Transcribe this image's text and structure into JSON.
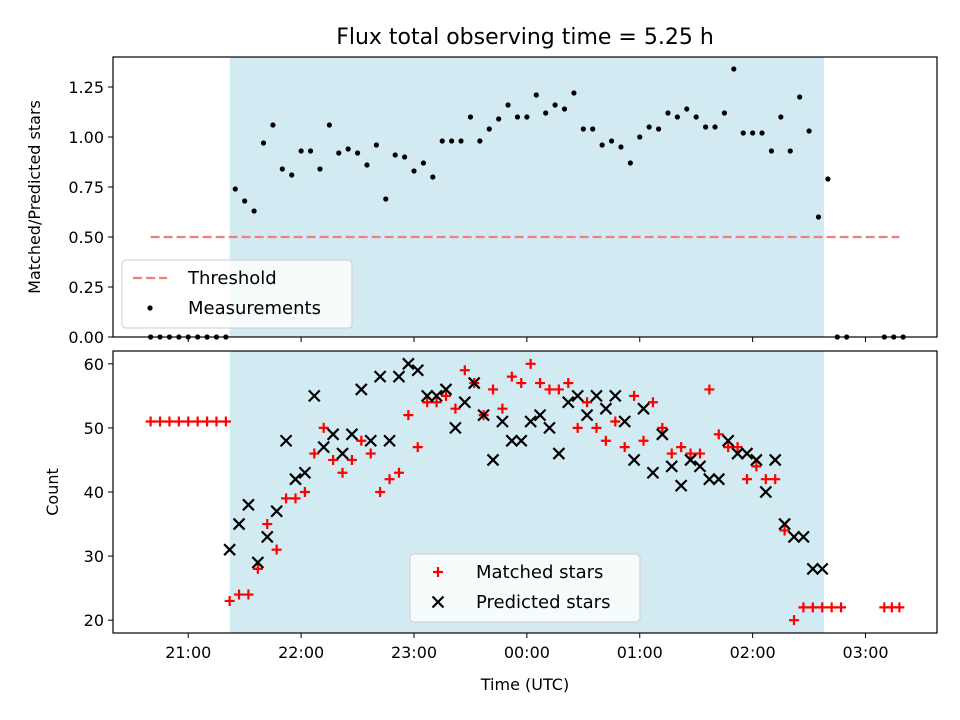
{
  "chart_data": [
    {
      "type": "scatter",
      "title": "Flux total observing time = 5.25 h",
      "xlabel": "",
      "ylabel": "Matched/Predicted stars",
      "ylim": [
        0,
        1.4
      ],
      "xlim": [
        "20:20",
        "03:38"
      ],
      "yticks": [
        "0.00",
        "0.25",
        "0.50",
        "0.75",
        "1.00",
        "1.25"
      ],
      "ytick_values": [
        0,
        0.25,
        0.5,
        0.75,
        1.0,
        1.25
      ],
      "legend": {
        "placement": "lower-left",
        "entries": [
          "Threshold",
          "Measurements"
        ]
      },
      "shaded_span": {
        "start": "21:22",
        "end": "02:38",
        "color": "#add8e6"
      },
      "threshold": {
        "name": "Threshold",
        "value": 0.5,
        "x_start": "20:40",
        "x_end": "03:18",
        "color": "#f08080",
        "style": "dashed"
      },
      "series": [
        {
          "name": "Measurements",
          "color": "#000000",
          "x": [
            "20:40",
            "20:45",
            "20:50",
            "20:55",
            "21:00",
            "21:05",
            "21:10",
            "21:15",
            "21:20",
            "21:25",
            "21:30",
            "21:35",
            "21:40",
            "21:45",
            "21:50",
            "21:55",
            "22:00",
            "22:05",
            "22:10",
            "22:15",
            "22:20",
            "22:25",
            "22:30",
            "22:35",
            "22:40",
            "22:45",
            "22:50",
            "22:55",
            "23:00",
            "23:05",
            "23:10",
            "23:15",
            "23:20",
            "23:25",
            "23:30",
            "23:35",
            "23:40",
            "23:45",
            "23:50",
            "23:55",
            "00:00",
            "00:05",
            "00:10",
            "00:15",
            "00:20",
            "00:25",
            "00:30",
            "00:35",
            "00:40",
            "00:45",
            "00:50",
            "00:55",
            "01:00",
            "01:05",
            "01:10",
            "01:15",
            "01:20",
            "01:25",
            "01:30",
            "01:35",
            "01:40",
            "01:45",
            "01:50",
            "01:55",
            "02:00",
            "02:05",
            "02:10",
            "02:15",
            "02:20",
            "02:25",
            "02:30",
            "02:35",
            "02:40",
            "02:45",
            "02:50",
            "03:10",
            "03:15",
            "03:20"
          ],
          "y": [
            0,
            0,
            0,
            0,
            0,
            0,
            0,
            0,
            0,
            0.74,
            0.68,
            0.63,
            0.97,
            1.06,
            0.84,
            0.81,
            0.93,
            0.93,
            0.84,
            1.06,
            0.92,
            0.94,
            0.92,
            0.86,
            0.96,
            0.69,
            0.91,
            0.9,
            0.83,
            0.87,
            0.8,
            0.98,
            0.98,
            0.98,
            1.1,
            0.98,
            1.04,
            1.09,
            1.16,
            1.1,
            1.1,
            1.21,
            1.12,
            1.16,
            1.14,
            1.22,
            1.04,
            1.04,
            0.96,
            0.98,
            0.95,
            0.87,
            1.0,
            1.05,
            1.04,
            1.12,
            1.1,
            1.14,
            1.1,
            1.05,
            1.05,
            1.12,
            1.34,
            1.02,
            1.02,
            1.02,
            0.93,
            1.1,
            0.93,
            1.2,
            1.03,
            0.6,
            0.79,
            0,
            0,
            0,
            0,
            0
          ]
        }
      ]
    },
    {
      "type": "scatter",
      "title": "",
      "xlabel": "Time (UTC)",
      "ylabel": "Count",
      "ylim": [
        18,
        62
      ],
      "xticks": [
        "21:00",
        "22:00",
        "23:00",
        "00:00",
        "01:00",
        "02:00",
        "03:00"
      ],
      "yticks": [
        "20",
        "30",
        "40",
        "50",
        "60"
      ],
      "ytick_values": [
        20,
        30,
        40,
        50,
        60
      ],
      "legend": {
        "placement": "lower-center",
        "entries": [
          "Matched stars",
          "Predicted stars"
        ]
      },
      "shaded_span": {
        "start": "21:22",
        "end": "02:38",
        "color": "#add8e6"
      },
      "series": [
        {
          "name": "Matched stars",
          "marker": "plus",
          "color": "#ff0000",
          "x": [
            "20:40",
            "20:45",
            "20:50",
            "20:55",
            "21:00",
            "21:05",
            "21:10",
            "21:15",
            "21:20",
            "21:22",
            "21:27",
            "21:32",
            "21:37",
            "21:42",
            "21:47",
            "21:52",
            "21:57",
            "22:02",
            "22:07",
            "22:12",
            "22:17",
            "22:22",
            "22:27",
            "22:32",
            "22:37",
            "22:42",
            "22:47",
            "22:52",
            "22:57",
            "23:02",
            "23:07",
            "23:12",
            "23:17",
            "23:22",
            "23:27",
            "23:32",
            "23:37",
            "23:42",
            "23:47",
            "23:52",
            "23:57",
            "00:02",
            "00:07",
            "00:12",
            "00:17",
            "00:22",
            "00:27",
            "00:32",
            "00:37",
            "00:42",
            "00:47",
            "00:52",
            "00:57",
            "01:02",
            "01:07",
            "01:12",
            "01:17",
            "01:22",
            "01:27",
            "01:32",
            "01:37",
            "01:42",
            "01:47",
            "01:52",
            "01:57",
            "02:02",
            "02:07",
            "02:12",
            "02:17",
            "02:22",
            "02:27",
            "02:32",
            "02:37",
            "02:42",
            "02:47",
            "03:10",
            "03:14",
            "03:18"
          ],
          "y": [
            51,
            51,
            51,
            51,
            51,
            51,
            51,
            51,
            51,
            23,
            24,
            24,
            28,
            35,
            31,
            39,
            39,
            40,
            46,
            50,
            45,
            43,
            45,
            48,
            46,
            40,
            42,
            43,
            52,
            47,
            54,
            54,
            55,
            53,
            59,
            57,
            52,
            56,
            53,
            58,
            57,
            60,
            57,
            56,
            56,
            57,
            50,
            54,
            50,
            48,
            51,
            47,
            55,
            48,
            54,
            50,
            46,
            47,
            46,
            46,
            56,
            49,
            47,
            47,
            42,
            44,
            42,
            42,
            34,
            20,
            22,
            22,
            22,
            22,
            22,
            22,
            22,
            22
          ]
        },
        {
          "name": "Predicted stars",
          "marker": "x",
          "color": "#000000",
          "x": [
            "21:22",
            "21:27",
            "21:32",
            "21:37",
            "21:42",
            "21:47",
            "21:52",
            "21:57",
            "22:02",
            "22:07",
            "22:12",
            "22:17",
            "22:22",
            "22:27",
            "22:32",
            "22:37",
            "22:42",
            "22:47",
            "22:52",
            "22:57",
            "23:02",
            "23:07",
            "23:12",
            "23:17",
            "23:22",
            "23:27",
            "23:32",
            "23:37",
            "23:42",
            "23:47",
            "23:52",
            "23:57",
            "00:02",
            "00:07",
            "00:12",
            "00:17",
            "00:22",
            "00:27",
            "00:32",
            "00:37",
            "00:42",
            "00:47",
            "00:52",
            "00:57",
            "01:02",
            "01:07",
            "01:12",
            "01:17",
            "01:22",
            "01:27",
            "01:32",
            "01:37",
            "01:42",
            "01:47",
            "01:52",
            "01:57",
            "02:02",
            "02:07",
            "02:12",
            "02:17",
            "02:22",
            "02:27",
            "02:32",
            "02:37"
          ],
          "y": [
            31,
            35,
            38,
            29,
            33,
            37,
            48,
            42,
            43,
            55,
            47,
            49,
            46,
            49,
            56,
            48,
            58,
            48,
            58,
            60,
            59,
            55,
            55,
            56,
            50,
            54,
            57,
            52,
            45,
            51,
            48,
            48,
            51,
            52,
            50,
            46,
            54,
            55,
            52,
            55,
            53,
            55,
            51,
            45,
            53,
            43,
            49,
            44,
            41,
            45,
            44,
            42,
            42,
            48,
            46,
            46,
            45,
            40,
            45,
            35,
            33,
            33,
            28,
            28
          ]
        }
      ]
    }
  ]
}
